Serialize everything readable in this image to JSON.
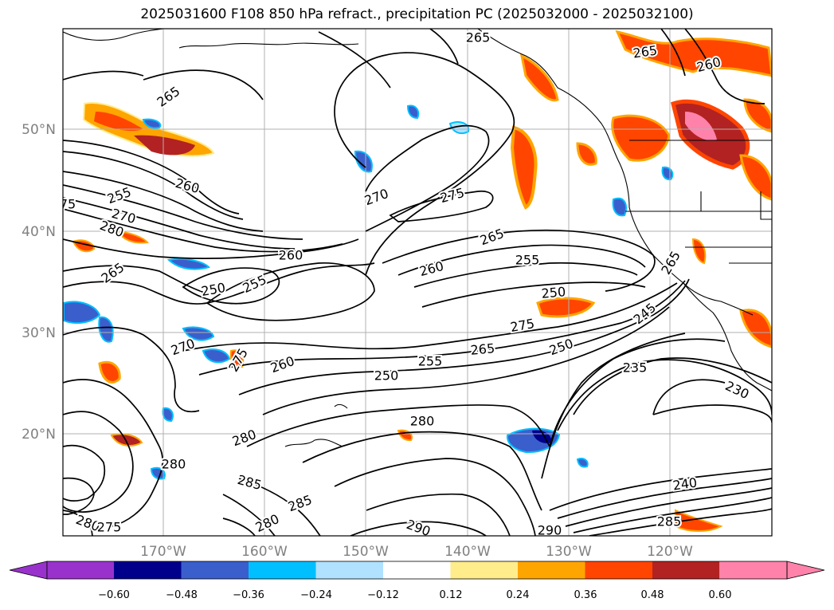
{
  "title": "2025031600 F108 850 hPa refract., precipitation PC (2025032000 - 2025032100)",
  "lon_labels": [
    "170°W",
    "160°W",
    "150°W",
    "140°W",
    "130°W",
    "120°W"
  ],
  "lat_labels": [
    "50°N",
    "40°N",
    "30°N",
    "20°N"
  ],
  "colorbar": {
    "ticks": [
      "−0.60",
      "−0.48",
      "−0.36",
      "−0.24",
      "−0.12",
      "0.12",
      "0.24",
      "0.36",
      "0.48",
      "0.60"
    ],
    "colors": [
      "#9932cc",
      "#00008b",
      "#3a5fcd",
      "#00bfff",
      "#b0e2ff",
      "#ffffff",
      "#ffec8b",
      "#ffa500",
      "#ff4500",
      "#b22222",
      "#ff82ab"
    ]
  },
  "contour_labels": [
    {
      "text": "265"
    },
    {
      "text": "265"
    },
    {
      "text": "260"
    },
    {
      "text": "265"
    },
    {
      "text": "260"
    },
    {
      "text": "255"
    },
    {
      "text": "270"
    },
    {
      "text": "280"
    },
    {
      "text": "75"
    },
    {
      "text": "270"
    },
    {
      "text": "275"
    },
    {
      "text": "265"
    },
    {
      "text": "265"
    },
    {
      "text": "260"
    },
    {
      "text": "250"
    },
    {
      "text": "255"
    },
    {
      "text": "260"
    },
    {
      "text": "255"
    },
    {
      "text": "250"
    },
    {
      "text": "275"
    },
    {
      "text": "265"
    },
    {
      "text": "245"
    },
    {
      "text": "270"
    },
    {
      "text": "275"
    },
    {
      "text": "260"
    },
    {
      "text": "250"
    },
    {
      "text": "255"
    },
    {
      "text": "250"
    },
    {
      "text": "235"
    },
    {
      "text": "230"
    },
    {
      "text": "280"
    },
    {
      "text": "280"
    },
    {
      "text": "280"
    },
    {
      "text": "285"
    },
    {
      "text": "285"
    },
    {
      "text": "280"
    },
    {
      "text": "290"
    },
    {
      "text": "290"
    },
    {
      "text": "240"
    },
    {
      "text": "285"
    },
    {
      "text": "280"
    },
    {
      "text": "275"
    },
    {
      "text": "265"
    }
  ]
}
